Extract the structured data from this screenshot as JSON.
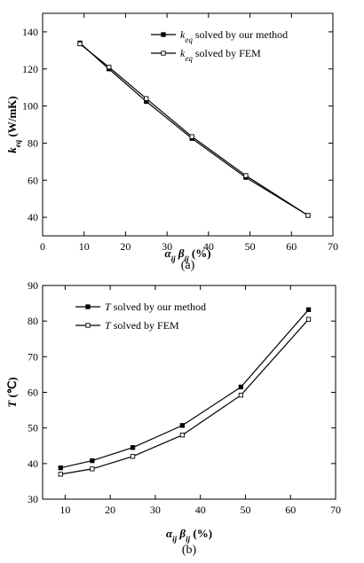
{
  "chart_data": [
    {
      "type": "line",
      "caption": "(a)",
      "xlabel": "αij βij (%)",
      "ylabel": "keq (W/mK)",
      "xlim": [
        0,
        70
      ],
      "ylim": [
        30,
        150
      ],
      "xticks": [
        0,
        10,
        20,
        30,
        40,
        50,
        60,
        70
      ],
      "yticks": [
        40,
        60,
        80,
        100,
        120,
        140
      ],
      "x": [
        9,
        16,
        25,
        36,
        49,
        64
      ],
      "series": [
        {
          "name": "keq solved by our method",
          "marker": "filled-square",
          "values": [
            134,
            120,
            102.5,
            82.5,
            61.5,
            41
          ]
        },
        {
          "name": "keq solved by FEM",
          "marker": "open-square",
          "values": [
            133.5,
            121,
            104,
            83.5,
            62.5,
            41
          ]
        }
      ],
      "legend_position": "top-right",
      "grid": false
    },
    {
      "type": "line",
      "caption": "(b)",
      "xlabel": "αij βij (%)",
      "ylabel": "T (℃)",
      "xlim": [
        5,
        70
      ],
      "ylim": [
        30,
        90
      ],
      "xticks": [
        10,
        20,
        30,
        40,
        50,
        60,
        70
      ],
      "yticks": [
        30,
        40,
        50,
        60,
        70,
        80,
        90
      ],
      "x": [
        9,
        16,
        25,
        36,
        49,
        64
      ],
      "series": [
        {
          "name": "T solved by our method",
          "marker": "filled-square",
          "values": [
            38.8,
            40.8,
            44.5,
            50.7,
            61.5,
            83.2
          ]
        },
        {
          "name": "T solved by FEM",
          "marker": "open-square",
          "values": [
            37,
            38.5,
            42,
            48,
            59.2,
            80.5
          ]
        }
      ],
      "legend_position": "top-left",
      "grid": false
    }
  ]
}
